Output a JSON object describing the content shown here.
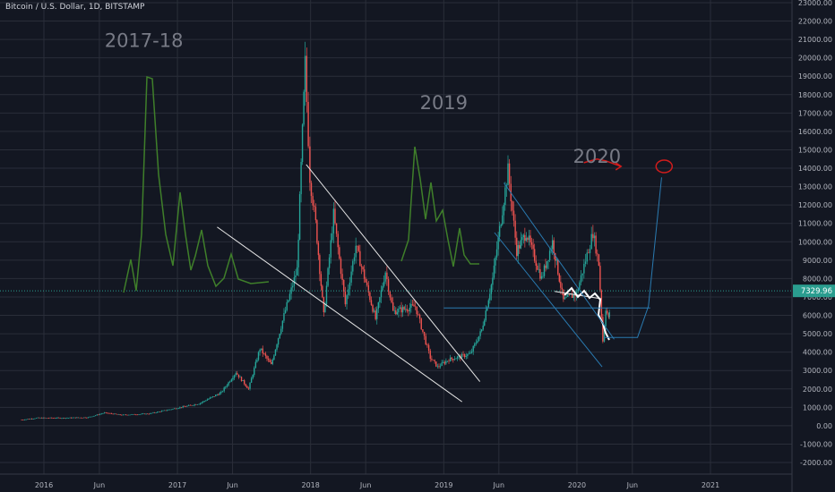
{
  "header": {
    "symbol_line": "Bitcoin / U.S. Dollar, 1D, BITSTAMP"
  },
  "chart_data": {
    "type": "line",
    "title": "Bitcoin / U.S. Dollar, 1D, BITSTAMP",
    "x_ticks": [
      "2016",
      "Jun",
      "2017",
      "Jun",
      "2018",
      "Jun",
      "2019",
      "Jun",
      "2020",
      "Jun",
      "2021"
    ],
    "y_ticks": [
      "23000.00",
      "22000.00",
      "21000.00",
      "20000.00",
      "19000.00",
      "18000.00",
      "17000.00",
      "16000.00",
      "15000.00",
      "14000.00",
      "13000.00",
      "12000.00",
      "11000.00",
      "10000.00",
      "9000.00",
      "8000.00",
      "7000.00",
      "6000.00",
      "5000.00",
      "4000.00",
      "3000.00",
      "2000.00",
      "1000.00",
      "0.00",
      "-1000.00",
      "-2000.00"
    ],
    "ylim": [
      -2000,
      23000
    ],
    "last_price": "7329.96",
    "last_price_value": 7329.96,
    "grid": true,
    "colors": {
      "up": "#26a69a",
      "down": "#ef5350",
      "background": "#131722",
      "grid": "#2a2e39",
      "annotation_green": "#3f7f2a",
      "annotation_blue": "#2a7ab0",
      "annotation_red": "#d11c1c",
      "price_tag": "#2a9d8f"
    },
    "series": [
      {
        "values": [
          [
            "2015-11-01",
            320
          ],
          [
            "2015-12-15",
            420
          ],
          [
            "2016-03-01",
            420
          ],
          [
            "2016-05-01",
            450
          ],
          [
            "2016-06-15",
            700
          ],
          [
            "2016-08-01",
            580
          ],
          [
            "2016-10-15",
            650
          ],
          [
            "2016-12-31",
            960
          ],
          [
            "2017-03-01",
            1200
          ],
          [
            "2017-05-01",
            1800
          ],
          [
            "2017-06-10",
            2900
          ],
          [
            "2017-07-15",
            2000
          ],
          [
            "2017-08-15",
            4200
          ],
          [
            "2017-09-15",
            3300
          ],
          [
            "2017-10-20",
            6000
          ],
          [
            "2017-11-25",
            8500
          ],
          [
            "2017-12-17",
            19700
          ],
          [
            "2017-12-30",
            13500
          ],
          [
            "2018-01-15",
            11000
          ],
          [
            "2018-02-06",
            6000
          ],
          [
            "2018-03-05",
            11500
          ],
          [
            "2018-04-06",
            6600
          ],
          [
            "2018-05-05",
            9800
          ],
          [
            "2018-06-28",
            5800
          ],
          [
            "2018-07-25",
            8400
          ],
          [
            "2018-08-15",
            6200
          ],
          [
            "2018-10-15",
            6500
          ],
          [
            "2018-11-25",
            3700
          ],
          [
            "2018-12-15",
            3200
          ],
          [
            "2019-01-15",
            3600
          ],
          [
            "2019-03-15",
            3900
          ],
          [
            "2019-04-15",
            5200
          ],
          [
            "2019-05-15",
            8000
          ],
          [
            "2019-06-26",
            13900
          ],
          [
            "2019-07-20",
            9500
          ],
          [
            "2019-08-15",
            10500
          ],
          [
            "2019-09-26",
            8000
          ],
          [
            "2019-10-26",
            10000
          ],
          [
            "2019-11-25",
            6800
          ],
          [
            "2019-12-31",
            7200
          ],
          [
            "2020-02-14",
            10500
          ],
          [
            "2020-03-01",
            8800
          ],
          [
            "2020-03-12",
            4600
          ],
          [
            "2020-03-20",
            6400
          ],
          [
            "2020-03-28",
            5800
          ],
          [
            "2020-03-30",
            6200
          ],
          [
            "2020-04-02",
            7330
          ]
        ]
      }
    ],
    "annotations": {
      "labels": [
        {
          "text": "2017-18",
          "x": "2016-10-01",
          "y": 20600,
          "size": 21
        },
        {
          "text": "2019",
          "x": "2019-01-01",
          "y": 17200,
          "size": 21
        },
        {
          "text": "2020",
          "x": "2020-02-25",
          "y": 14300,
          "size": 21
        }
      ],
      "trend_lines_white": [
        [
          [
            "2017-12-20",
            14200
          ],
          [
            "2019-04-10",
            2400
          ]
        ],
        [
          [
            "2017-04-20",
            10800
          ],
          [
            "2019-02-20",
            1300
          ]
        ],
        [
          [
            "2019-11-01",
            7300
          ],
          [
            "2020-03-08",
            6900
          ]
        ]
      ],
      "trend_lines_blue": [
        [
          [
            "2019-06-15",
            13200
          ],
          [
            "2020-04-12",
            4700
          ]
        ],
        [
          [
            "2019-05-20",
            10500
          ],
          [
            "2020-03-10",
            3200
          ]
        ],
        [
          [
            "2019-01-01",
            6400
          ],
          [
            "2020-07-20",
            6400
          ]
        ],
        [
          [
            "2020-03-15",
            4800
          ],
          [
            "2020-06-15",
            4800
          ],
          [
            "2020-07-15",
            6500
          ],
          [
            "2020-08-20",
            13500
          ]
        ]
      ],
      "red_arrow": [
        [
          "2020-01-20",
          14300
        ],
        [
          "2020-02-25",
          14500
        ],
        [
          "2020-03-20",
          14400
        ],
        [
          "2020-05-01",
          14100
        ]
      ],
      "red_circle": {
        "x": "2020-08-27",
        "y": 14100
      }
    }
  }
}
